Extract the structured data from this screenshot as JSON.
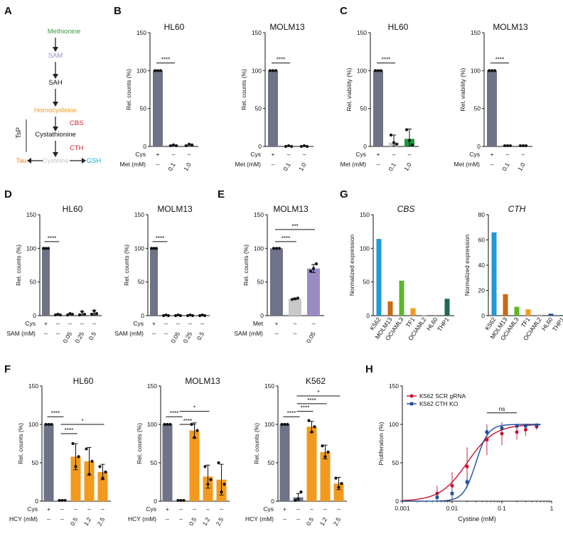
{
  "panel_labels": {
    "A": "A",
    "B": "B",
    "C": "C",
    "D": "D",
    "E": "E",
    "F": "F",
    "G": "G",
    "H": "H"
  },
  "colors": {
    "gray": "#6e7387",
    "light_gray": "#c8c8c8",
    "purple": "#9a8bc4",
    "orange": "#f29a1e",
    "green": "#1f9a3a",
    "red": "#c8102e",
    "blue": "#1f4e9a"
  },
  "pathway": {
    "methionine": "Methionine",
    "sam": "SAM",
    "sah": "SAH",
    "homocysteine": "Homocysteine",
    "cbs": "CBS",
    "cystathionine": "Cystathionine",
    "cth": "CTH",
    "cysteine": "Cysteine",
    "tau": "Tau",
    "gsh": "GSH",
    "tsp": "TsP",
    "c_methionine": "#3a9a3a",
    "c_sam": "#9a8bc4",
    "c_homocysteine": "#f29a1e",
    "c_enzyme": "#d0202e",
    "c_cysteine": "#c8c8c8",
    "c_tau": "#f07f1e",
    "c_gsh": "#1fa6d8"
  },
  "chart_data": [
    {
      "id": "B_HL60",
      "type": "bar",
      "title": "HL60",
      "ylabel": "Rel. counts (%)",
      "ylim": [
        0,
        150
      ],
      "yticks": [
        "0",
        "50",
        "100",
        "150"
      ],
      "categories": [
        "c1",
        "c2",
        "c3"
      ],
      "values": [
        100,
        1.5,
        2
      ],
      "points": [
        [
          100,
          100,
          100
        ],
        [
          1,
          2,
          1
        ],
        [
          1,
          3,
          2
        ]
      ],
      "errors": [
        0,
        0,
        0
      ],
      "colors": [
        "#6e7387",
        "#6e7387",
        "#6e7387"
      ],
      "bracket": [
        {
          "from": 0,
          "to": 1,
          "y": 110,
          "label": "****"
        }
      ],
      "rows": [
        {
          "label": "Cys",
          "values": [
            "+",
            "–",
            "–"
          ]
        },
        {
          "label": "Met (mM)",
          "values": [
            "–",
            "0.1",
            "1.0"
          ]
        }
      ]
    },
    {
      "id": "B_MOLM13",
      "type": "bar",
      "title": "MOLM13",
      "ylabel": "Rel. counts (%)",
      "ylim": [
        0,
        150
      ],
      "yticks": [
        "0",
        "50",
        "100",
        "150"
      ],
      "categories": [
        "c1",
        "c2",
        "c3"
      ],
      "values": [
        100,
        0.5,
        0.5
      ],
      "points": [
        [
          100,
          100,
          100
        ],
        [
          0,
          1,
          0
        ],
        [
          0,
          1,
          0
        ]
      ],
      "errors": [
        0,
        0,
        0
      ],
      "colors": [
        "#6e7387",
        "#6e7387",
        "#6e7387"
      ],
      "bracket": [
        {
          "from": 0,
          "to": 1,
          "y": 110,
          "label": "****"
        }
      ],
      "rows": [
        {
          "label": "Cys",
          "values": [
            "+",
            "–",
            "–"
          ]
        },
        {
          "label": "Met (mM)",
          "values": [
            "–",
            "0.1",
            "1.0"
          ]
        }
      ]
    },
    {
      "id": "C_HL60",
      "type": "bar",
      "title": "HL60",
      "ylabel": "Rel. viability (%)",
      "ylim": [
        0,
        150
      ],
      "yticks": [
        "0",
        "50",
        "100",
        "150"
      ],
      "categories": [
        "c1",
        "c2",
        "c3"
      ],
      "values": [
        100,
        5,
        10
      ],
      "points": [
        [
          100,
          100,
          100
        ],
        [
          15,
          5,
          3
        ],
        [
          22,
          8,
          2
        ]
      ],
      "errors": [
        0,
        10,
        13
      ],
      "colors": [
        "#6e7387",
        "#c8c8c8",
        "#1f9a3a"
      ],
      "bracket": [
        {
          "from": 0,
          "to": 1,
          "y": 110,
          "label": "****"
        }
      ],
      "rows": [
        {
          "label": "Cys",
          "values": [
            "+",
            "–",
            "–"
          ]
        },
        {
          "label": "Met (mM)",
          "values": [
            "–",
            "0.1",
            "1.0"
          ]
        }
      ]
    },
    {
      "id": "C_MOLM13",
      "type": "bar",
      "title": "MOLM13",
      "ylabel": "Rel. viability (%)",
      "ylim": [
        0,
        150
      ],
      "yticks": [
        "0",
        "50",
        "100",
        "150"
      ],
      "categories": [
        "c1",
        "c2",
        "c3"
      ],
      "values": [
        100,
        1,
        1
      ],
      "points": [
        [
          100,
          100,
          100
        ],
        [
          1,
          1,
          1
        ],
        [
          1,
          1,
          1
        ]
      ],
      "errors": [
        0,
        0,
        0
      ],
      "colors": [
        "#6e7387",
        "#6e7387",
        "#6e7387"
      ],
      "bracket": [
        {
          "from": 0,
          "to": 1,
          "y": 110,
          "label": "****"
        }
      ],
      "rows": [
        {
          "label": "Cys",
          "values": [
            "+",
            "–",
            "–"
          ]
        },
        {
          "label": "Met (mM)",
          "values": [
            "–",
            "0.1",
            "1.0"
          ]
        }
      ]
    },
    {
      "id": "D_HL60",
      "type": "bar",
      "title": "HL60",
      "ylabel": "Rel. counts (%)",
      "ylim": [
        0,
        150
      ],
      "yticks": [
        "0",
        "50",
        "100",
        "150"
      ],
      "categories": [
        "c1",
        "c2",
        "c3",
        "c4",
        "c5"
      ],
      "values": [
        100,
        1.5,
        2,
        3,
        4
      ],
      "points": [
        [
          100,
          100,
          100
        ],
        [
          1,
          2,
          1
        ],
        [
          1,
          3,
          2
        ],
        [
          1,
          6,
          2
        ],
        [
          2,
          7,
          3
        ]
      ],
      "errors": [
        0,
        0,
        0,
        3,
        4
      ],
      "colors": [
        "#6e7387",
        "#6e7387",
        "#6e7387",
        "#6e7387",
        "#6e7387"
      ],
      "bracket": [
        {
          "from": 0,
          "to": 1,
          "y": 110,
          "label": "****"
        }
      ],
      "rows": [
        {
          "label": "Cys",
          "values": [
            "+",
            "–",
            "–",
            "–",
            "–"
          ]
        },
        {
          "label": "SAM (mM)",
          "values": [
            "–",
            "–",
            "0.05",
            "0.25",
            "0.5"
          ]
        }
      ]
    },
    {
      "id": "D_MOLM13",
      "type": "bar",
      "title": "MOLM13",
      "ylabel": "Rel. counts (%)",
      "ylim": [
        0,
        150
      ],
      "yticks": [
        "0",
        "50",
        "100",
        "150"
      ],
      "categories": [
        "c1",
        "c2",
        "c3",
        "c4",
        "c5"
      ],
      "values": [
        100,
        0.5,
        0.5,
        0.5,
        0.5
      ],
      "points": [
        [
          100,
          100,
          100
        ],
        [
          0,
          1,
          0
        ],
        [
          0,
          1,
          0
        ],
        [
          0,
          1,
          0
        ],
        [
          0,
          1,
          0
        ]
      ],
      "errors": [
        0,
        0,
        0,
        0,
        0
      ],
      "colors": [
        "#6e7387",
        "#6e7387",
        "#6e7387",
        "#6e7387",
        "#6e7387"
      ],
      "bracket": [
        {
          "from": 0,
          "to": 1,
          "y": 110,
          "label": "****"
        }
      ],
      "rows": [
        {
          "label": "Cys",
          "values": [
            "+",
            "–",
            "–",
            "–",
            "–"
          ]
        },
        {
          "label": "SAM (mM)",
          "values": [
            "–",
            "–",
            "0.05",
            "0.25",
            "0.5"
          ]
        }
      ]
    },
    {
      "id": "E_MOLM13",
      "type": "bar",
      "title": "MOLM13",
      "ylabel": "Rel. counts (%)",
      "ylim": [
        0,
        150
      ],
      "yticks": [
        "0",
        "50",
        "100",
        "150"
      ],
      "categories": [
        "c1",
        "c2",
        "c3"
      ],
      "values": [
        100,
        25,
        70
      ],
      "points": [
        [
          100,
          100,
          100
        ],
        [
          24,
          25,
          26
        ],
        [
          66,
          70,
          77
        ]
      ],
      "errors": [
        0,
        1,
        6
      ],
      "colors": [
        "#6e7387",
        "#c8c8c8",
        "#9a8bc4"
      ],
      "bracket": [
        {
          "from": 0,
          "to": 1,
          "y": 110,
          "label": "****"
        },
        {
          "from": 0,
          "to": 2,
          "y": 128,
          "label": "***"
        }
      ],
      "rows": [
        {
          "label": "Met",
          "values": [
            "+",
            "–",
            "–"
          ]
        },
        {
          "label": "SAM (mM)",
          "values": [
            "–",
            "–",
            "0.05"
          ]
        }
      ]
    },
    {
      "id": "G_CBS",
      "type": "bar",
      "title": "CBS",
      "title_italic": true,
      "ylabel": "Normalized expression",
      "ylim": [
        0,
        150
      ],
      "yticks": [
        "0",
        "50",
        "100",
        "150"
      ],
      "categories": [
        "K562",
        "MOLM13",
        "OCIAML3",
        "TF1",
        "OCIAML2",
        "HL60",
        "THP1"
      ],
      "values": [
        114,
        21,
        52,
        11,
        0.5,
        1,
        25
      ],
      "colors": [
        "#1f9ad8",
        "#c86a14",
        "#5cb82c",
        "#f29a1e",
        "#c8c8c8",
        "#9a8bc4",
        "#1f6a4e"
      ]
    },
    {
      "id": "G_CTH",
      "type": "bar",
      "title": "CTH",
      "title_italic": true,
      "ylabel": "Normalized expression",
      "ylim": [
        0,
        80
      ],
      "yticks": [
        "0",
        "20",
        "40",
        "60",
        "80"
      ],
      "categories": [
        "K562",
        "MOLM13",
        "OCIAML3",
        "TF1",
        "OCIAML2",
        "HL60",
        "THP1"
      ],
      "values": [
        66,
        17,
        7,
        5,
        1,
        1.5,
        0.5
      ],
      "colors": [
        "#1f9ad8",
        "#c86a14",
        "#5cb82c",
        "#f29a1e",
        "#c8c8c8",
        "#1f4e9a",
        "#1f6a4e"
      ]
    },
    {
      "id": "F_HL60",
      "type": "bar",
      "title": "HL60",
      "ylabel": "Rel. counts (%)",
      "ylim": [
        0,
        150
      ],
      "yticks": [
        "0",
        "50",
        "100",
        "150"
      ],
      "categories": [
        "c1",
        "c2",
        "c3",
        "c4",
        "c5"
      ],
      "values": [
        100,
        1,
        58,
        52,
        38
      ],
      "points": [
        [
          100,
          100,
          100
        ],
        [
          1,
          1,
          1
        ],
        [
          75,
          45,
          58
        ],
        [
          68,
          35,
          52
        ],
        [
          45,
          30,
          38
        ]
      ],
      "errors": [
        0,
        0,
        17,
        18,
        10
      ],
      "colors": [
        "#6e7387",
        "#6e7387",
        "#f29a1e",
        "#f29a1e",
        "#f29a1e"
      ],
      "bracket": [
        {
          "from": 0,
          "to": 1,
          "y": 110,
          "label": "****"
        },
        {
          "from": 1,
          "to": 2,
          "y": 88,
          "label": "****"
        },
        {
          "from": 1,
          "to": 4,
          "y": 100,
          "label": "*"
        }
      ],
      "rows": [
        {
          "label": "Cys",
          "values": [
            "+",
            "–",
            "–",
            "–",
            "–"
          ]
        },
        {
          "label": "HCY (mM)",
          "values": [
            "–",
            "–",
            "0.5",
            "1.2",
            "2.5"
          ]
        }
      ]
    },
    {
      "id": "F_MOLM13",
      "type": "bar",
      "title": "MOLM13",
      "ylabel": "Rel. counts (%)",
      "ylim": [
        0,
        150
      ],
      "yticks": [
        "0",
        "50",
        "100",
        "150"
      ],
      "categories": [
        "c1",
        "c2",
        "c3",
        "c4",
        "c5"
      ],
      "values": [
        100,
        1,
        92,
        32,
        28
      ],
      "points": [
        [
          100,
          100,
          100
        ],
        [
          1,
          1,
          1
        ],
        [
          100,
          83,
          92
        ],
        [
          45,
          22,
          28
        ],
        [
          50,
          12,
          22
        ]
      ],
      "errors": [
        0,
        0,
        10,
        15,
        20
      ],
      "colors": [
        "#6e7387",
        "#6e7387",
        "#f29a1e",
        "#f29a1e",
        "#f29a1e"
      ],
      "bracket": [
        {
          "from": 0,
          "to": 1,
          "y": 110,
          "label": "****"
        },
        {
          "from": 1,
          "to": 2,
          "y": 100,
          "label": "****"
        },
        {
          "from": 1,
          "to": 3,
          "y": 117,
          "label": "*"
        }
      ],
      "rows": [
        {
          "label": "Cys",
          "values": [
            "+",
            "–",
            "–",
            "–",
            "–"
          ]
        },
        {
          "label": "HCY (mM)",
          "values": [
            "–",
            "–",
            "0.5",
            "1.2",
            "2.5"
          ]
        }
      ]
    },
    {
      "id": "F_K562",
      "type": "bar",
      "title": "K562",
      "ylabel": "Rel. counts (%)",
      "ylim": [
        0,
        150
      ],
      "yticks": [
        "0",
        "50",
        "100",
        "150"
      ],
      "categories": [
        "c1",
        "c2",
        "c3",
        "c4",
        "c5"
      ],
      "values": [
        100,
        5,
        97,
        64,
        23
      ],
      "points": [
        [
          100,
          100,
          100
        ],
        [
          1,
          3,
          12
        ],
        [
          105,
          90,
          97
        ],
        [
          72,
          58,
          64
        ],
        [
          30,
          18,
          23
        ]
      ],
      "errors": [
        0,
        5,
        7,
        9,
        8
      ],
      "colors": [
        "#6e7387",
        "#6e7387",
        "#f29a1e",
        "#f29a1e",
        "#f29a1e"
      ],
      "bracket": [
        {
          "from": 0,
          "to": 1,
          "y": 110,
          "label": "****"
        },
        {
          "from": 1,
          "to": 2,
          "y": 117,
          "label": "****"
        },
        {
          "from": 1,
          "to": 3,
          "y": 127,
          "label": "****"
        },
        {
          "from": 1,
          "to": 4,
          "y": 137,
          "label": "*"
        }
      ],
      "rows": [
        {
          "label": "Cys",
          "values": [
            "+",
            "–",
            "–",
            "–",
            "–"
          ]
        },
        {
          "label": "HCY (mM)",
          "values": [
            "–",
            "–",
            "0.5",
            "1.2",
            "2.5"
          ]
        }
      ]
    },
    {
      "id": "H",
      "type": "scatter",
      "xscale": "log",
      "xlabel": "Cystine (mM)",
      "ylabel": "Proliferation (%)",
      "xlim": [
        0.001,
        1
      ],
      "ylim": [
        0,
        150
      ],
      "xticks": [
        "0.001",
        "0.01",
        "0.1",
        "1"
      ],
      "yticks": [
        "0",
        "50",
        "100",
        "150"
      ],
      "legend": "top-left",
      "series": [
        {
          "name": "K562 SCR gRNA",
          "color": "#c8102e",
          "marker": "circle",
          "ec50": 0.02,
          "hill": 1.6,
          "x": [
            0.005,
            0.01,
            0.02,
            0.05,
            0.1,
            0.2,
            0.3,
            0.5
          ],
          "y": [
            10,
            20,
            45,
            80,
            88,
            90,
            93,
            97
          ],
          "err": [
            10,
            18,
            25,
            20,
            15,
            10,
            8,
            4
          ]
        },
        {
          "name": "K562 CTH KO",
          "color": "#1f4e9a",
          "marker": "square",
          "ec50": 0.03,
          "hill": 3.5,
          "x": [
            0.005,
            0.01,
            0.02,
            0.05,
            0.1,
            0.2,
            0.3,
            0.5
          ],
          "y": [
            5,
            10,
            25,
            90,
            95,
            98,
            98,
            99
          ],
          "err": [
            5,
            6,
            8,
            6,
            4,
            3,
            2,
            2
          ]
        }
      ],
      "annotation": {
        "label": "ns",
        "x1": 0.05,
        "x2": 0.2,
        "y": 115
      }
    }
  ]
}
